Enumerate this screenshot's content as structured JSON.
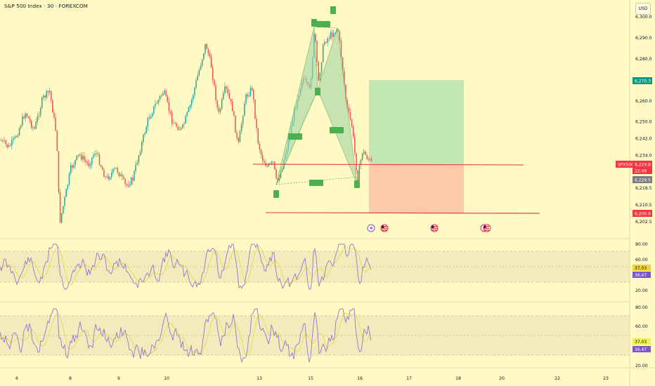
{
  "header": {
    "symbol_title": "S&P 500 Index · 30 · FOREXCOM",
    "currency_button": "USD"
  },
  "price_axis": {
    "labels": [
      {
        "text": "6,300.0",
        "value": 6300
      },
      {
        "text": "6,290.0",
        "value": 6290
      },
      {
        "text": "6,280.0",
        "value": 6280
      },
      {
        "text": "6,260.0",
        "value": 6260
      },
      {
        "text": "6,250.0",
        "value": 6250
      },
      {
        "text": "6,242.0",
        "value": 6242
      },
      {
        "text": "6,234.0",
        "value": 6234
      },
      {
        "text": "6,218.5",
        "value": 6218.5
      },
      {
        "text": "6,210.5",
        "value": 6210.5
      },
      {
        "text": "6,202.5",
        "value": 6202.5
      }
    ],
    "tags": [
      {
        "text": "6,270.3",
        "value": 6270.3,
        "color": "#089981"
      },
      {
        "text": "SPX500",
        "value": 6229.8,
        "color": "#f23645"
      },
      {
        "text": "6,229.8",
        "value": 6229.8,
        "color": "#f23645"
      },
      {
        "text": "22:49",
        "value": 6227.4,
        "color": "#f23645"
      },
      {
        "text": "6,229.5",
        "value": 6223.6,
        "color": "#787b86"
      },
      {
        "text": "6,206.6",
        "value": 6206.6,
        "color": "#f23645"
      }
    ]
  },
  "rsi_panels": [
    {
      "axis_labels": [
        "80.00",
        "60.00",
        "20.00"
      ],
      "rsi_value": "36.47",
      "ma_value": "37.03",
      "rsi_color": "#9575cd",
      "ma_color": "#f0d23a"
    },
    {
      "axis_labels": [
        "80.00",
        "60.00",
        "20.00"
      ],
      "rsi_value": "36.47",
      "ma_value": "37.03",
      "rsi_color": "#9575cd",
      "ma_color": "#f0d23a"
    }
  ],
  "time_axis": [
    "6",
    "8",
    "9",
    "10",
    "13",
    "15",
    "16",
    "17",
    "18",
    "20",
    "22",
    "23"
  ],
  "colors": {
    "background": "#fff9c4",
    "up_candle": "#26a69a",
    "down_candle": "#ef5350",
    "pattern_fill": "#a5d6a7",
    "pattern_stroke": "#43a047",
    "target_zone": "#b9e4b0",
    "stop_zone": "#f9c4a8",
    "support_line": "#e53935"
  },
  "event_icons": [
    "lightning-event-icon",
    "us-flag-event-icon",
    "us-flag-event-icon",
    "us-flag-event-icon"
  ]
}
